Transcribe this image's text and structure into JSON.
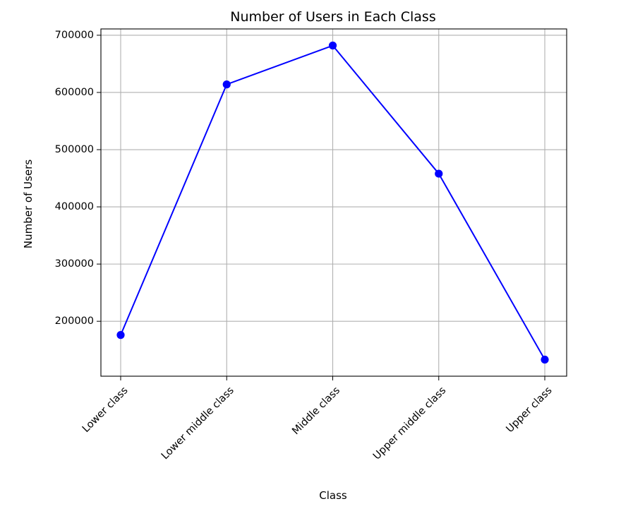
{
  "chart_data": {
    "type": "line",
    "title": "Number of Users in Each Class",
    "xlabel": "Class",
    "ylabel": "Number of Users",
    "categories": [
      "Lower class",
      "Lower middle class",
      "Middle class",
      "Upper middle class",
      "Upper class"
    ],
    "series": [
      {
        "values": [
          176000,
          614000,
          682000,
          458000,
          133000
        ]
      }
    ],
    "ylim": [
      104000,
      711000
    ],
    "yticks": [
      200000,
      300000,
      400000,
      500000,
      600000,
      700000
    ],
    "ytick_labels": [
      "200000",
      "300000",
      "400000",
      "500000",
      "600000",
      "700000"
    ],
    "grid": true,
    "xtick_rotation_deg": 45,
    "line_color": "#0000ff",
    "marker": "circle",
    "grid_color": "#b0b0b0"
  }
}
